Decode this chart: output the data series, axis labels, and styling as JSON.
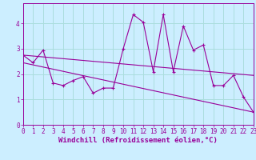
{
  "xlabel": "Windchill (Refroidissement éolien,°C)",
  "background_color": "#cceeff",
  "line_color": "#990099",
  "xlim": [
    0,
    23
  ],
  "ylim": [
    0,
    4.8
  ],
  "yticks": [
    0,
    1,
    2,
    3,
    4
  ],
  "xticks": [
    0,
    1,
    2,
    3,
    4,
    5,
    6,
    7,
    8,
    9,
    10,
    11,
    12,
    13,
    14,
    15,
    16,
    17,
    18,
    19,
    20,
    21,
    22,
    23
  ],
  "series1_x": [
    0,
    1,
    2,
    3,
    4,
    5,
    6,
    7,
    8,
    9,
    10,
    11,
    12,
    13,
    14,
    15,
    16,
    17,
    18,
    19,
    20,
    21,
    22,
    23
  ],
  "series1_y": [
    2.75,
    2.45,
    2.95,
    1.65,
    1.55,
    1.75,
    1.9,
    1.25,
    1.45,
    1.45,
    3.0,
    4.35,
    4.05,
    2.1,
    4.35,
    2.1,
    3.9,
    2.95,
    3.15,
    1.55,
    1.55,
    1.95,
    1.1,
    0.5
  ],
  "series2_x": [
    0,
    23
  ],
  "series2_y": [
    2.75,
    1.95
  ],
  "series3_x": [
    0,
    23
  ],
  "series3_y": [
    2.45,
    0.5
  ],
  "grid_color": "#aadddd",
  "tick_fontsize": 5.5,
  "xlabel_fontsize": 6.5
}
